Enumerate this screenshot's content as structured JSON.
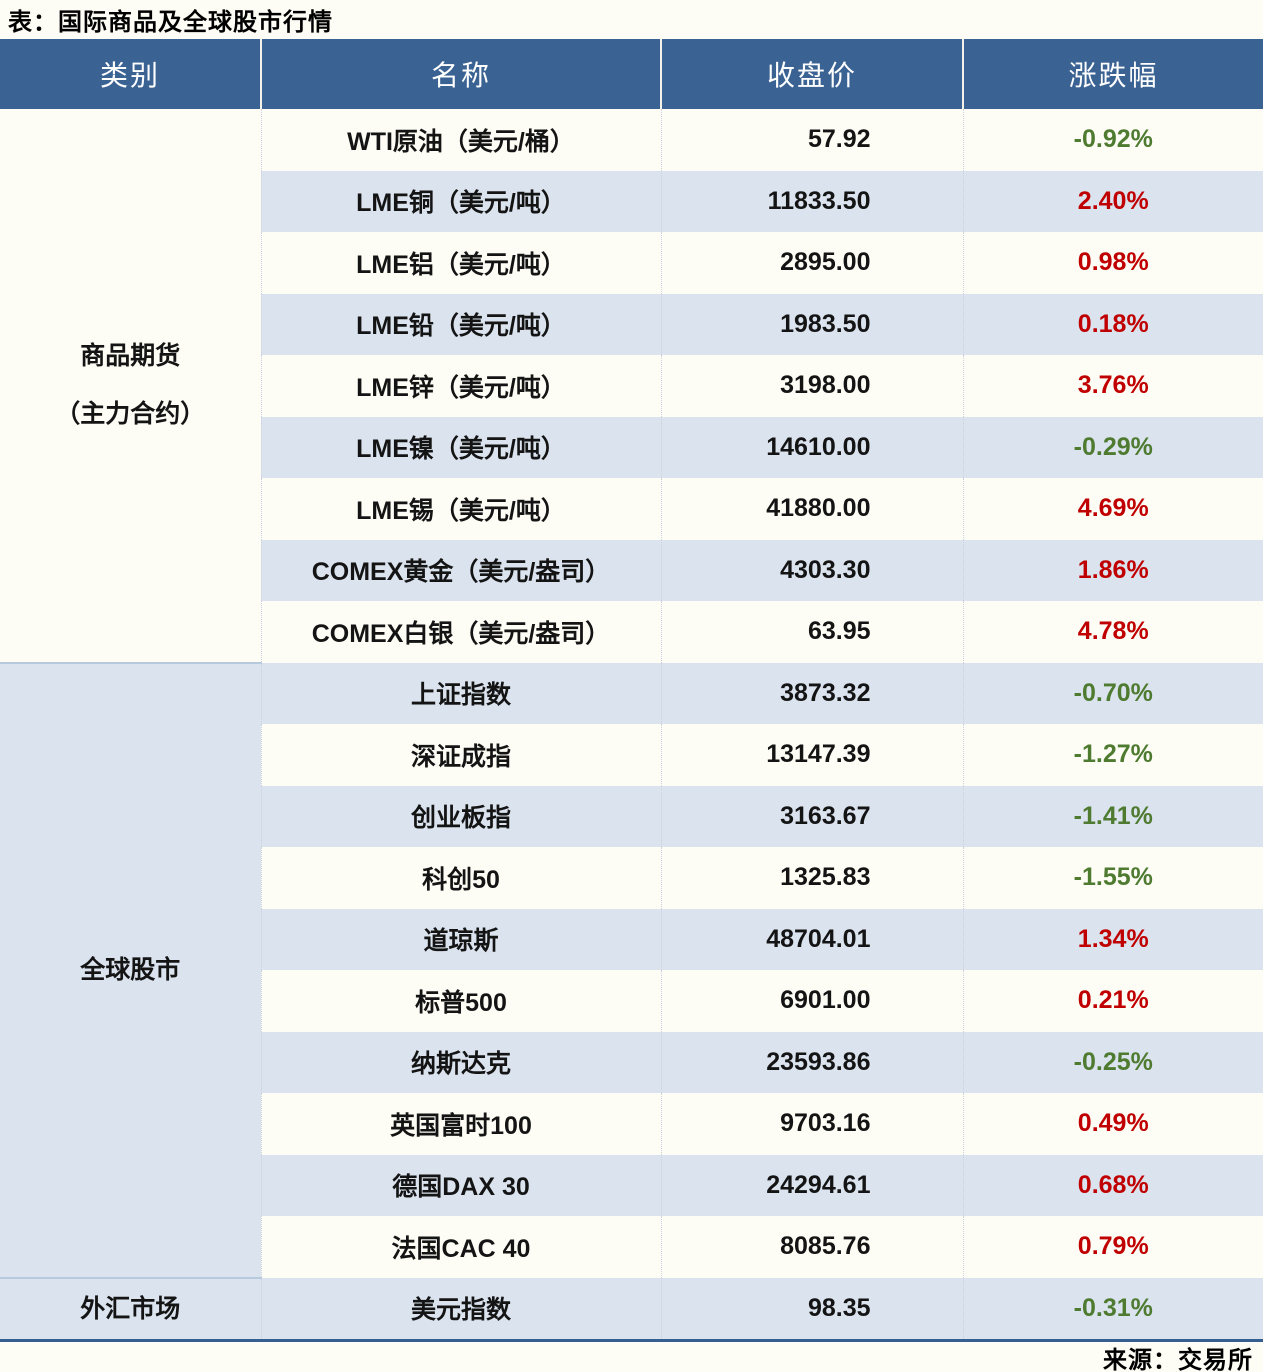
{
  "title": "表：国际商品及全球股市行情",
  "source": "来源：交易所",
  "colors": {
    "header_bg": "#3a6292",
    "stripe_bg": "#dae3ee",
    "paper": "#fdfdf6",
    "positive": "#c00000",
    "negative": "#4f7b31",
    "section_divider": "#b7c9dc",
    "bottom_border": "#365f91"
  },
  "chart_data": {
    "type": "table",
    "title": "表：国际商品及全球股市行情",
    "source": "来源：交易所",
    "columns": [
      "类别",
      "名称",
      "收盘价",
      "涨跌幅"
    ],
    "sections": [
      {
        "category": "商品期货\n（主力合约）",
        "rows": [
          {
            "name": "WTI原油（美元/桶）",
            "close": "57.92",
            "change": "-0.92%"
          },
          {
            "name": "LME铜（美元/吨）",
            "close": "11833.50",
            "change": "2.40%"
          },
          {
            "name": "LME铝（美元/吨）",
            "close": "2895.00",
            "change": "0.98%"
          },
          {
            "name": "LME铅（美元/吨）",
            "close": "1983.50",
            "change": "0.18%"
          },
          {
            "name": "LME锌（美元/吨）",
            "close": "3198.00",
            "change": "3.76%"
          },
          {
            "name": "LME镍（美元/吨）",
            "close": "14610.00",
            "change": "-0.29%"
          },
          {
            "name": "LME锡（美元/吨）",
            "close": "41880.00",
            "change": "4.69%"
          },
          {
            "name": "COMEX黄金（美元/盎司）",
            "close": "4303.30",
            "change": "1.86%"
          },
          {
            "name": "COMEX白银（美元/盎司）",
            "close": "63.95",
            "change": "4.78%"
          }
        ]
      },
      {
        "category": "全球股市",
        "rows": [
          {
            "name": "上证指数",
            "close": "3873.32",
            "change": "-0.70%"
          },
          {
            "name": "深证成指",
            "close": "13147.39",
            "change": "-1.27%"
          },
          {
            "name": "创业板指",
            "close": "3163.67",
            "change": "-1.41%"
          },
          {
            "name": "科创50",
            "close": "1325.83",
            "change": "-1.55%"
          },
          {
            "name": "道琼斯",
            "close": "48704.01",
            "change": "1.34%"
          },
          {
            "name": "标普500",
            "close": "6901.00",
            "change": "0.21%"
          },
          {
            "name": "纳斯达克",
            "close": "23593.86",
            "change": "-0.25%"
          },
          {
            "name": "英国富时100",
            "close": "9703.16",
            "change": "0.49%"
          },
          {
            "name": "德国DAX 30",
            "close": "24294.61",
            "change": "0.68%"
          },
          {
            "name": "法国CAC 40",
            "close": "8085.76",
            "change": "0.79%"
          }
        ]
      },
      {
        "category": "外汇市场",
        "rows": [
          {
            "name": "美元指数",
            "close": "98.35",
            "change": "-0.31%"
          }
        ]
      }
    ]
  }
}
